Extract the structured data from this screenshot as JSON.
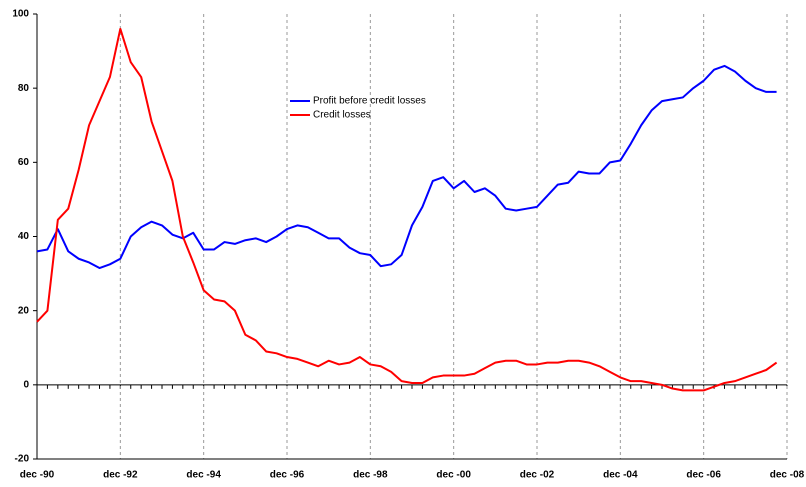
{
  "chart_data": {
    "type": "line",
    "categories": [
      "dec -90",
      null,
      null,
      null,
      null,
      null,
      null,
      null,
      "dec -92",
      null,
      null,
      null,
      null,
      null,
      null,
      null,
      "dec -94",
      null,
      null,
      null,
      null,
      null,
      null,
      null,
      "dec -96",
      null,
      null,
      null,
      null,
      null,
      null,
      null,
      "dec -98",
      null,
      null,
      null,
      null,
      null,
      null,
      null,
      "dec -00",
      null,
      null,
      null,
      null,
      null,
      null,
      null,
      "dec -02",
      null,
      null,
      null,
      null,
      null,
      null,
      null,
      "dec -04",
      null,
      null,
      null,
      null,
      null,
      null,
      null,
      "dec -06",
      null,
      null,
      null,
      null,
      null,
      null,
      null,
      "dec -08"
    ],
    "series": [
      {
        "name": "Profit before credit losses",
        "color": "#0000ff",
        "values": [
          36,
          36.5,
          42,
          36,
          34,
          33,
          31.5,
          32.5,
          34,
          40,
          42.5,
          44,
          43,
          40.5,
          39.5,
          41,
          36.5,
          36.5,
          38.5,
          38,
          39,
          39.5,
          38.5,
          40,
          42,
          43,
          42.5,
          41,
          39.5,
          39.5,
          37,
          35.5,
          35,
          32,
          32.5,
          35,
          43,
          48,
          55,
          56,
          53,
          55,
          52,
          53,
          51,
          47.5,
          47,
          47.5,
          48,
          51,
          54,
          54.5,
          57.5,
          57,
          57,
          60,
          60.5,
          65,
          70,
          74,
          76.5,
          77,
          77.5,
          80,
          82,
          85,
          86,
          84.5,
          82,
          80,
          79,
          79,
          null
        ]
      },
      {
        "name": "Credit losses",
        "color": "#ff0000",
        "values": [
          17,
          20,
          44.5,
          47.5,
          58,
          70,
          76.5,
          83,
          96,
          87,
          83,
          71,
          63,
          55,
          40,
          33,
          25.5,
          23,
          22.5,
          20,
          13.5,
          12,
          9,
          8.5,
          7.5,
          7,
          6,
          5,
          6.5,
          5.5,
          6,
          7.5,
          5.5,
          5,
          3.5,
          1,
          0.5,
          0.5,
          2,
          2.5,
          2.5,
          2.5,
          3,
          4.5,
          6,
          6.5,
          6.5,
          5.5,
          5.5,
          6,
          6,
          6.5,
          6.5,
          6,
          5,
          3.5,
          2,
          1,
          1,
          0.5,
          0,
          -1,
          -1.5,
          -1.5,
          -1.5,
          -0.5,
          0.5,
          1,
          2,
          3,
          4,
          6,
          null
        ]
      }
    ],
    "ylim": [
      -20,
      100
    ],
    "yticks": [
      -20,
      0,
      20,
      40,
      60,
      80,
      100
    ],
    "grid": true
  }
}
